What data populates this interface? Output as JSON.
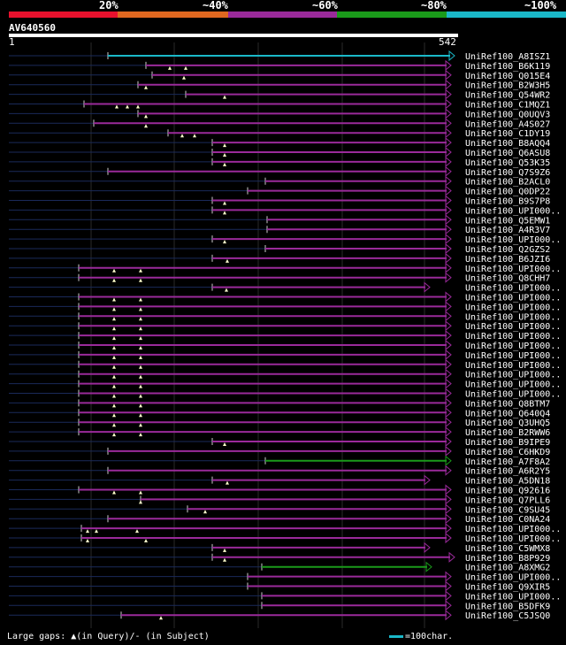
{
  "legend": {
    "labels": [
      "20%",
      "~40%",
      "~60%",
      "~80%",
      "~100%"
    ],
    "colors": [
      "#e8112d",
      "#e06820",
      "#9a2a9a",
      "#1a9a1a",
      "#1ab8c8"
    ]
  },
  "query": {
    "name": "AV640560",
    "start": "1",
    "end": "542"
  },
  "footer": {
    "gaps_text": "Large gaps: ▲(in Query)/- (in Subject)",
    "scale_text": "=100char."
  },
  "hits": [
    {
      "name": "UniRef100_A8ISZ1",
      "start": 122,
      "end": 514,
      "color": "cyan",
      "arrow": true,
      "marks": []
    },
    {
      "name": "UniRef100_B6K119",
      "start": 165,
      "end": 510,
      "color": "purple",
      "arrow": true,
      "marks": [
        192,
        210
      ]
    },
    {
      "name": "UniRef100_Q015E4",
      "start": 172,
      "end": 510,
      "color": "purple",
      "arrow": true,
      "marks": [
        208
      ]
    },
    {
      "name": "UniRef100_B2W3H5",
      "start": 156,
      "end": 510,
      "color": "purple",
      "arrow": true,
      "marks": [
        165
      ]
    },
    {
      "name": "UniRef100_Q54WR2",
      "start": 210,
      "end": 510,
      "color": "purple",
      "arrow": true,
      "marks": [
        254
      ]
    },
    {
      "name": "UniRef100_C1MQZ1",
      "start": 95,
      "end": 510,
      "color": "purple",
      "arrow": true,
      "marks": [
        132,
        144,
        156
      ]
    },
    {
      "name": "UniRef100_Q0UQV3",
      "start": 156,
      "end": 510,
      "color": "purple",
      "arrow": true,
      "marks": [
        165
      ]
    },
    {
      "name": "UniRef100_A4S027",
      "start": 106,
      "end": 510,
      "color": "purple",
      "arrow": true,
      "marks": [
        165
      ]
    },
    {
      "name": "UniRef100_C1DY19",
      "start": 190,
      "end": 510,
      "color": "purple",
      "arrow": true,
      "marks": [
        206,
        220
      ]
    },
    {
      "name": "UniRef100_B8AQQ4",
      "start": 240,
      "end": 510,
      "color": "purple",
      "arrow": true,
      "marks": [
        254
      ]
    },
    {
      "name": "UniRef100_Q6ASU8",
      "start": 240,
      "end": 510,
      "color": "purple",
      "arrow": true,
      "marks": [
        254
      ]
    },
    {
      "name": "UniRef100_Q53K35",
      "start": 240,
      "end": 510,
      "color": "purple",
      "arrow": true,
      "marks": [
        254
      ]
    },
    {
      "name": "UniRef100_Q7S9Z6",
      "start": 122,
      "end": 510,
      "color": "purple",
      "arrow": true,
      "marks": []
    },
    {
      "name": "UniRef100_B2ACL0",
      "start": 300,
      "end": 510,
      "color": "purple",
      "arrow": true,
      "marks": []
    },
    {
      "name": "UniRef100_Q0DP22",
      "start": 280,
      "end": 510,
      "color": "purple",
      "arrow": true,
      "marks": []
    },
    {
      "name": "UniRef100_B9S7P8",
      "start": 240,
      "end": 510,
      "color": "purple",
      "arrow": true,
      "marks": [
        254
      ]
    },
    {
      "name": "UniRef100_UPI000..",
      "start": 240,
      "end": 510,
      "color": "purple",
      "arrow": true,
      "marks": [
        254
      ]
    },
    {
      "name": "UniRef100_Q5EMW1",
      "start": 302,
      "end": 510,
      "color": "purple",
      "arrow": true,
      "marks": []
    },
    {
      "name": "UniRef100_A4R3V7",
      "start": 302,
      "end": 510,
      "color": "purple",
      "arrow": true,
      "marks": []
    },
    {
      "name": "UniRef100_UPI000..",
      "start": 240,
      "end": 510,
      "color": "purple",
      "arrow": true,
      "marks": [
        254
      ]
    },
    {
      "name": "UniRef100_Q2GZS2",
      "start": 300,
      "end": 510,
      "color": "purple",
      "arrow": true,
      "marks": []
    },
    {
      "name": "UniRef100_B6JZI6",
      "start": 240,
      "end": 510,
      "color": "purple",
      "arrow": true,
      "marks": [
        257
      ]
    },
    {
      "name": "UniRef100_UPI000..",
      "start": 89,
      "end": 510,
      "color": "purple",
      "arrow": true,
      "marks": [
        129,
        159
      ]
    },
    {
      "name": "UniRef100_Q8CHH7",
      "start": 89,
      "end": 510,
      "color": "purple",
      "arrow": true,
      "marks": [
        129,
        159
      ]
    },
    {
      "name": "UniRef100_UPI000..",
      "start": 240,
      "end": 486,
      "color": "purple",
      "arrow": true,
      "marks": [
        256
      ]
    },
    {
      "name": "UniRef100_UPI000..",
      "start": 89,
      "end": 510,
      "color": "purple",
      "arrow": true,
      "marks": [
        129,
        159
      ]
    },
    {
      "name": "UniRef100_UPI000..",
      "start": 89,
      "end": 510,
      "color": "purple",
      "arrow": true,
      "marks": [
        129,
        159
      ]
    },
    {
      "name": "UniRef100_UPI000..",
      "start": 89,
      "end": 510,
      "color": "purple",
      "arrow": true,
      "marks": [
        129,
        159
      ]
    },
    {
      "name": "UniRef100_UPI000..",
      "start": 89,
      "end": 510,
      "color": "purple",
      "arrow": true,
      "marks": [
        129,
        159
      ]
    },
    {
      "name": "UniRef100_UPI000..",
      "start": 89,
      "end": 510,
      "color": "purple",
      "arrow": true,
      "marks": [
        129,
        159
      ]
    },
    {
      "name": "UniRef100_UPI000..",
      "start": 89,
      "end": 510,
      "color": "purple",
      "arrow": true,
      "marks": [
        129,
        159
      ]
    },
    {
      "name": "UniRef100_UPI000..",
      "start": 89,
      "end": 510,
      "color": "purple",
      "arrow": true,
      "marks": [
        129,
        159
      ]
    },
    {
      "name": "UniRef100_UPI000..",
      "start": 89,
      "end": 510,
      "color": "purple",
      "arrow": true,
      "marks": [
        129,
        159
      ]
    },
    {
      "name": "UniRef100_UPI000..",
      "start": 89,
      "end": 510,
      "color": "purple",
      "arrow": true,
      "marks": [
        129,
        159
      ]
    },
    {
      "name": "UniRef100_UPI000..",
      "start": 89,
      "end": 510,
      "color": "purple",
      "arrow": true,
      "marks": [
        129,
        159
      ]
    },
    {
      "name": "UniRef100_UPI000..",
      "start": 89,
      "end": 510,
      "color": "purple",
      "arrow": true,
      "marks": [
        129,
        159
      ]
    },
    {
      "name": "UniRef100_Q8BTM7",
      "start": 89,
      "end": 510,
      "color": "purple",
      "arrow": true,
      "marks": [
        129,
        159
      ]
    },
    {
      "name": "UniRef100_Q640Q4",
      "start": 89,
      "end": 510,
      "color": "purple",
      "arrow": true,
      "marks": [
        129,
        159
      ]
    },
    {
      "name": "UniRef100_Q3UHQ5",
      "start": 89,
      "end": 510,
      "color": "purple",
      "arrow": true,
      "marks": [
        129,
        159
      ]
    },
    {
      "name": "UniRef100_B2RWW6",
      "start": 89,
      "end": 510,
      "color": "purple",
      "arrow": true,
      "marks": [
        129,
        159
      ]
    },
    {
      "name": "UniRef100_B9IPE9",
      "start": 240,
      "end": 510,
      "color": "purple",
      "arrow": true,
      "marks": [
        254
      ]
    },
    {
      "name": "UniRef100_C6HKD9",
      "start": 122,
      "end": 510,
      "color": "purple",
      "arrow": true,
      "marks": []
    },
    {
      "name": "UniRef100_A7F8A2",
      "start": 300,
      "end": 510,
      "color": "green",
      "arrow": true,
      "marks": []
    },
    {
      "name": "UniRef100_A6R2Y5",
      "start": 122,
      "end": 510,
      "color": "purple",
      "arrow": true,
      "marks": []
    },
    {
      "name": "UniRef100_A5DN18",
      "start": 240,
      "end": 486,
      "color": "purple",
      "arrow": true,
      "marks": [
        257
      ]
    },
    {
      "name": "UniRef100_Q92616",
      "start": 89,
      "end": 510,
      "color": "purple",
      "arrow": true,
      "marks": [
        129,
        159
      ]
    },
    {
      "name": "UniRef100_Q7PLL6",
      "start": 159,
      "end": 510,
      "color": "purple",
      "arrow": true,
      "marks": [
        159
      ]
    },
    {
      "name": "UniRef100_C9SU45",
      "start": 212,
      "end": 510,
      "color": "purple",
      "arrow": true,
      "marks": [
        232
      ]
    },
    {
      "name": "UniRef100_C0NA24",
      "start": 122,
      "end": 510,
      "color": "purple",
      "arrow": true,
      "marks": []
    },
    {
      "name": "UniRef100_UPI000..",
      "start": 92,
      "end": 510,
      "color": "purple",
      "arrow": true,
      "marks": [
        99,
        109,
        155
      ]
    },
    {
      "name": "UniRef100_UPI000..",
      "start": 92,
      "end": 510,
      "color": "purple",
      "arrow": true,
      "marks": [
        99,
        165
      ]
    },
    {
      "name": "UniRef100_C5WMX8",
      "start": 240,
      "end": 486,
      "color": "purple",
      "arrow": true,
      "marks": [
        254
      ]
    },
    {
      "name": "UniRef100_B8P929",
      "start": 240,
      "end": 514,
      "color": "purple",
      "arrow": true,
      "marks": [
        254
      ]
    },
    {
      "name": "UniRef100_A8XMG2",
      "start": 296,
      "end": 488,
      "color": "green",
      "arrow": true,
      "marks": []
    },
    {
      "name": "UniRef100_UPI000..",
      "start": 280,
      "end": 510,
      "color": "purple",
      "arrow": true,
      "marks": []
    },
    {
      "name": "UniRef100_Q9XIR5",
      "start": 280,
      "end": 510,
      "color": "purple",
      "arrow": true,
      "marks": []
    },
    {
      "name": "UniRef100_UPI000..",
      "start": 296,
      "end": 510,
      "color": "purple",
      "arrow": true,
      "marks": []
    },
    {
      "name": "UniRef100_B5DFK9",
      "start": 296,
      "end": 510,
      "color": "purple",
      "arrow": true,
      "marks": []
    },
    {
      "name": "UniRef100_C5JSQ0",
      "start": 137,
      "end": 510,
      "color": "purple",
      "arrow": true,
      "marks": [
        182
      ]
    }
  ]
}
